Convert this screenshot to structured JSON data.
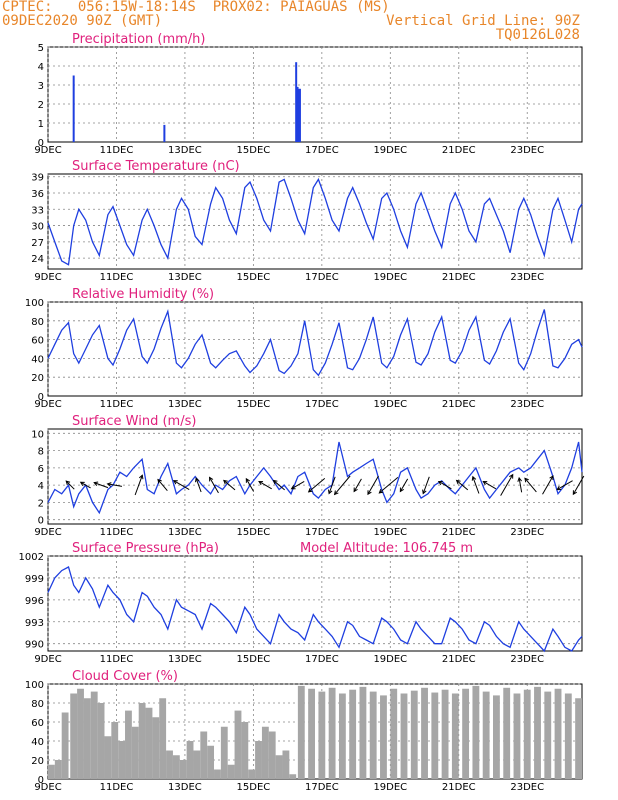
{
  "header": {
    "line1": "CPTEC:   056:15W-18:14S  PROX02: PAIAGUAS (MS)",
    "line2": "09DEC2020 90Z (GMT)",
    "right1": "Vertical Grid Line: 90Z",
    "right2": "TQ0126L028"
  },
  "colors": {
    "header": "#e8862a",
    "title": "#e0217d",
    "line": "#1f3fe0",
    "bar": "#1f3fe0",
    "cloud": "#a6a6a6"
  },
  "chart_data": [
    {
      "id": "precip",
      "type": "bar",
      "title": "Precipitation (mm/h)",
      "ylim": [
        0,
        5
      ],
      "yticks": [
        0,
        1,
        2,
        3,
        4,
        5
      ],
      "xlim": [
        9,
        24.6
      ],
      "xticks": [
        9,
        11,
        13,
        15,
        17,
        19,
        21,
        23
      ],
      "xticklabels": [
        "9DEC",
        "11DEC",
        "13DEC",
        "15DEC",
        "17DEC",
        "19DEC",
        "21DEC",
        "23DEC"
      ],
      "x": [
        9.75,
        12.4,
        16.25,
        16.29,
        16.32,
        16.36
      ],
      "values": [
        3.5,
        0.9,
        4.2,
        2.9,
        2.8,
        2.8
      ]
    },
    {
      "id": "temp",
      "type": "line",
      "title": "Surface Temperature (nC)",
      "ylim": [
        22,
        39.5
      ],
      "yticks": [
        24,
        27,
        30,
        33,
        36,
        39
      ],
      "xlim": [
        9,
        24.6
      ],
      "xticks": [
        9,
        11,
        13,
        15,
        17,
        19,
        21,
        23
      ],
      "xticklabels": [
        "9DEC",
        "11DEC",
        "13DEC",
        "15DEC",
        "17DEC",
        "19DEC",
        "21DEC",
        "23DEC"
      ],
      "x": [
        9.0,
        9.2,
        9.4,
        9.6,
        9.75,
        9.9,
        10.1,
        10.3,
        10.5,
        10.75,
        10.9,
        11.1,
        11.3,
        11.5,
        11.75,
        11.9,
        12.1,
        12.3,
        12.5,
        12.75,
        12.9,
        13.1,
        13.3,
        13.5,
        13.75,
        13.9,
        14.1,
        14.3,
        14.5,
        14.75,
        14.9,
        15.1,
        15.3,
        15.5,
        15.75,
        15.9,
        16.1,
        16.3,
        16.5,
        16.75,
        16.9,
        17.1,
        17.3,
        17.5,
        17.75,
        17.9,
        18.1,
        18.3,
        18.5,
        18.75,
        18.9,
        19.1,
        19.3,
        19.5,
        19.75,
        19.9,
        20.1,
        20.3,
        20.5,
        20.75,
        20.9,
        21.1,
        21.3,
        21.5,
        21.75,
        21.9,
        22.1,
        22.3,
        22.5,
        22.75,
        22.9,
        23.1,
        23.3,
        23.5,
        23.75,
        23.9,
        24.1,
        24.3,
        24.5,
        24.6
      ],
      "values": [
        30.5,
        27,
        23.5,
        22.8,
        30,
        33,
        31,
        27,
        24.5,
        32,
        33.5,
        30,
        26.5,
        24.5,
        31,
        33,
        30,
        26.5,
        24,
        33,
        35,
        33,
        28,
        26.5,
        34,
        37,
        35,
        31,
        28.5,
        37,
        38,
        35,
        31,
        29,
        38,
        38.5,
        35,
        31,
        28.5,
        37,
        38.5,
        35,
        31,
        29,
        35,
        37,
        34,
        30.5,
        27.5,
        35,
        36,
        33,
        29,
        26,
        34,
        36,
        32.5,
        29,
        26,
        34,
        36,
        33,
        29,
        27,
        34,
        35,
        32,
        29,
        25,
        33,
        35,
        32,
        28,
        24.5,
        33,
        35,
        31,
        27,
        33,
        34
      ]
    },
    {
      "id": "rh",
      "type": "line",
      "title": "Relative Humidity (%)",
      "ylim": [
        0,
        100
      ],
      "yticks": [
        0,
        20,
        40,
        60,
        80,
        100
      ],
      "xlim": [
        9,
        24.6
      ],
      "xticks": [
        9,
        11,
        13,
        15,
        17,
        19,
        21,
        23
      ],
      "xticklabels": [
        "9DEC",
        "11DEC",
        "13DEC",
        "15DEC",
        "17DEC",
        "19DEC",
        "21DEC",
        "23DEC"
      ],
      "x": [
        9.0,
        9.2,
        9.4,
        9.6,
        9.75,
        9.9,
        10.1,
        10.3,
        10.5,
        10.75,
        10.9,
        11.1,
        11.3,
        11.5,
        11.75,
        11.9,
        12.1,
        12.3,
        12.5,
        12.75,
        12.9,
        13.1,
        13.3,
        13.5,
        13.75,
        13.9,
        14.1,
        14.3,
        14.5,
        14.75,
        14.9,
        15.1,
        15.3,
        15.5,
        15.75,
        15.9,
        16.1,
        16.3,
        16.5,
        16.75,
        16.9,
        17.1,
        17.3,
        17.5,
        17.75,
        17.9,
        18.1,
        18.3,
        18.5,
        18.75,
        18.9,
        19.1,
        19.3,
        19.5,
        19.75,
        19.9,
        20.1,
        20.3,
        20.5,
        20.75,
        20.9,
        21.1,
        21.3,
        21.5,
        21.75,
        21.9,
        22.1,
        22.3,
        22.5,
        22.75,
        22.9,
        23.1,
        23.3,
        23.5,
        23.75,
        23.9,
        24.1,
        24.3,
        24.5,
        24.6
      ],
      "values": [
        40,
        55,
        70,
        78,
        45,
        35,
        50,
        65,
        75,
        40,
        33,
        50,
        70,
        82,
        42,
        35,
        50,
        72,
        90,
        35,
        30,
        40,
        55,
        65,
        35,
        30,
        38,
        45,
        48,
        32,
        25,
        32,
        45,
        60,
        27,
        24,
        32,
        45,
        80,
        28,
        22,
        35,
        55,
        78,
        30,
        28,
        40,
        60,
        84,
        35,
        30,
        42,
        65,
        82,
        36,
        33,
        45,
        68,
        84,
        38,
        35,
        48,
        70,
        84,
        38,
        34,
        48,
        68,
        82,
        35,
        28,
        45,
        70,
        92,
        32,
        30,
        40,
        55,
        60,
        52
      ]
    },
    {
      "id": "wind",
      "type": "line",
      "title": "Surface Wind (m/s)",
      "ylim": [
        -0.5,
        10.5
      ],
      "yticks": [
        0,
        2,
        4,
        6,
        8,
        10
      ],
      "xlim": [
        9,
        24.6
      ],
      "xticks": [
        9,
        11,
        13,
        15,
        17,
        19,
        21,
        23
      ],
      "xticklabels": [
        "9DEC",
        "11DEC",
        "13DEC",
        "15DEC",
        "17DEC",
        "19DEC",
        "21DEC",
        "23DEC"
      ],
      "x": [
        9.0,
        9.2,
        9.4,
        9.6,
        9.75,
        9.9,
        10.1,
        10.3,
        10.5,
        10.75,
        10.9,
        11.1,
        11.3,
        11.5,
        11.75,
        11.9,
        12.1,
        12.3,
        12.5,
        12.75,
        12.9,
        13.1,
        13.3,
        13.5,
        13.75,
        13.9,
        14.1,
        14.3,
        14.5,
        14.75,
        14.9,
        15.1,
        15.3,
        15.5,
        15.75,
        15.9,
        16.1,
        16.3,
        16.5,
        16.75,
        16.9,
        17.1,
        17.3,
        17.5,
        17.75,
        17.9,
        18.1,
        18.3,
        18.5,
        18.75,
        18.9,
        19.1,
        19.3,
        19.5,
        19.75,
        19.9,
        20.1,
        20.3,
        20.5,
        20.75,
        20.9,
        21.1,
        21.3,
        21.5,
        21.75,
        21.9,
        22.1,
        22.3,
        22.5,
        22.75,
        22.9,
        23.1,
        23.3,
        23.5,
        23.75,
        23.9,
        24.1,
        24.3,
        24.5,
        24.6
      ],
      "values": [
        2,
        3.5,
        3,
        4,
        1.5,
        3,
        4,
        2,
        0.8,
        3.5,
        4,
        5.5,
        5,
        6,
        7,
        3.5,
        3,
        5,
        6.5,
        3,
        3.5,
        4,
        5,
        4,
        3,
        4,
        3.5,
        4.5,
        5,
        3,
        4,
        5,
        6,
        5,
        3.5,
        4,
        3,
        5,
        5.5,
        3,
        2.5,
        3.5,
        4,
        9,
        5,
        5.5,
        6,
        6.5,
        7,
        3.5,
        2,
        3,
        5.5,
        6,
        3.5,
        2.5,
        3,
        4,
        4.5,
        3.5,
        3,
        4,
        5,
        6,
        3.5,
        2.5,
        3.5,
        4.5,
        5.5,
        6,
        5.5,
        6,
        7,
        8,
        5,
        3,
        4,
        6,
        9,
        5.5
      ]
    },
    {
      "id": "pres",
      "type": "line",
      "title": "Surface Pressure (hPa)",
      "annotation": "Model Altitude: 106.745  m",
      "ylim": [
        989,
        1002
      ],
      "yticks": [
        990,
        993,
        996,
        999,
        1002
      ],
      "xlim": [
        9,
        24.6
      ],
      "xticks": [
        9,
        11,
        13,
        15,
        17,
        19,
        21,
        23
      ],
      "xticklabels": [
        "9DEC",
        "11DEC",
        "13DEC",
        "15DEC",
        "17DEC",
        "19DEC",
        "21DEC",
        "23DEC"
      ],
      "x": [
        9.0,
        9.2,
        9.4,
        9.6,
        9.75,
        9.9,
        10.1,
        10.3,
        10.5,
        10.75,
        10.9,
        11.1,
        11.3,
        11.5,
        11.75,
        11.9,
        12.1,
        12.3,
        12.5,
        12.75,
        12.9,
        13.1,
        13.3,
        13.5,
        13.75,
        13.9,
        14.1,
        14.3,
        14.5,
        14.75,
        14.9,
        15.1,
        15.3,
        15.5,
        15.75,
        15.9,
        16.1,
        16.3,
        16.5,
        16.75,
        16.9,
        17.1,
        17.3,
        17.5,
        17.75,
        17.9,
        18.1,
        18.3,
        18.5,
        18.75,
        18.9,
        19.1,
        19.3,
        19.5,
        19.75,
        19.9,
        20.1,
        20.3,
        20.5,
        20.75,
        20.9,
        21.1,
        21.3,
        21.5,
        21.75,
        21.9,
        22.1,
        22.3,
        22.5,
        22.75,
        22.9,
        23.1,
        23.3,
        23.5,
        23.75,
        23.9,
        24.1,
        24.3,
        24.5,
        24.6
      ],
      "values": [
        997,
        999,
        1000,
        1000.5,
        998,
        997,
        999,
        997.5,
        995,
        998,
        997,
        996,
        994,
        993,
        997,
        996.5,
        995,
        994,
        992,
        996,
        995,
        994.5,
        994,
        992,
        995.5,
        995,
        994,
        993,
        991.5,
        995,
        994,
        992,
        991,
        990,
        994,
        993,
        992,
        991.5,
        990.5,
        994,
        993,
        992,
        991,
        989.5,
        993,
        992.5,
        991,
        990.5,
        990,
        993.5,
        993,
        992,
        990.5,
        990,
        993,
        992,
        991,
        990,
        990,
        993.5,
        993,
        992,
        990.5,
        990,
        993,
        992.5,
        991,
        990,
        989.5,
        993,
        992,
        991,
        990,
        989,
        992,
        991,
        989.5,
        989,
        990.5,
        991
      ]
    },
    {
      "id": "cloud",
      "type": "bar",
      "title": "Cloud Cover (%)",
      "ylim": [
        0,
        100
      ],
      "yticks": [
        0,
        20,
        40,
        60,
        80,
        100
      ],
      "xlim": [
        9,
        24.6
      ],
      "xticks": [
        9,
        11,
        13,
        15,
        17,
        19,
        21,
        23
      ],
      "xticklabels": [
        "9DEC",
        "11DEC",
        "13DEC",
        "15DEC",
        "17DEC",
        "19DEC",
        "21DEC",
        "23DEC"
      ],
      "x": [
        9.1,
        9.3,
        9.5,
        9.75,
        9.95,
        10.15,
        10.35,
        10.55,
        10.75,
        10.95,
        11.15,
        11.35,
        11.55,
        11.75,
        11.95,
        12.15,
        12.35,
        12.55,
        12.75,
        12.95,
        13.15,
        13.35,
        13.55,
        13.75,
        13.95,
        14.15,
        14.35,
        14.55,
        14.75,
        14.95,
        15.15,
        15.35,
        15.55,
        15.75,
        15.95,
        16.15,
        16.4,
        16.7,
        17,
        17.3,
        17.6,
        17.9,
        18.2,
        18.5,
        18.8,
        19.1,
        19.4,
        19.7,
        20,
        20.3,
        20.6,
        20.9,
        21.2,
        21.5,
        21.8,
        22.1,
        22.4,
        22.7,
        23,
        23.3,
        23.6,
        23.9,
        24.2,
        24.5
      ],
      "values": [
        15,
        20,
        70,
        90,
        95,
        85,
        92,
        80,
        45,
        60,
        40,
        72,
        55,
        80,
        75,
        65,
        85,
        30,
        25,
        20,
        40,
        30,
        50,
        35,
        10,
        55,
        15,
        72,
        60,
        10,
        40,
        55,
        50,
        25,
        30,
        5,
        98,
        95,
        92,
        96,
        90,
        94,
        97,
        92,
        88,
        95,
        90,
        93,
        96,
        91,
        94,
        90,
        95,
        98,
        92,
        88,
        96,
        90,
        94,
        97,
        92,
        95,
        90,
        85
      ]
    }
  ],
  "wind_arrows": {
    "x": [
      9.65,
      10.1,
      10.55,
      10.95,
      11.65,
      12.35,
      12.9,
      13.4,
      13.85,
      14.3,
      14.9,
      15.35,
      15.75,
      16.3,
      16.85,
      17.3,
      17.6,
      18.05,
      18.5,
      18.95,
      19.4,
      20.05,
      20.6,
      21.1,
      21.5,
      21.9,
      22.4,
      22.8,
      23.1,
      23.6,
      24.1,
      24.5
    ],
    "speed": [
      2,
      2,
      3,
      3,
      5,
      3,
      4,
      3,
      4,
      3,
      3,
      3,
      3,
      3,
      5,
      4,
      6,
      3,
      5,
      6,
      3,
      4,
      3,
      3,
      4,
      3,
      6,
      3,
      4,
      5,
      4,
      5
    ],
    "dir_deg": [
      315,
      300,
      290,
      280,
      20,
      320,
      300,
      340,
      330,
      310,
      330,
      300,
      310,
      240,
      230,
      200,
      220,
      210,
      210,
      230,
      210,
      200,
      300,
      310,
      340,
      300,
      30,
      350,
      320,
      30,
      240,
      210
    ]
  }
}
